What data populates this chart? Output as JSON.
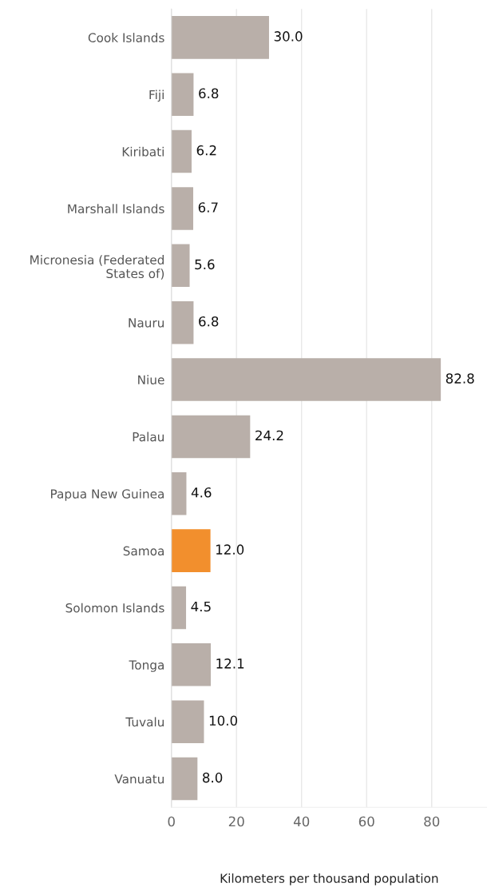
{
  "chart_data": {
    "type": "bar",
    "orientation": "horizontal",
    "xlabel": "Kilometers per thousand population",
    "categories": [
      "Cook Islands",
      "Fiji",
      "Kiribati",
      "Marshall Islands",
      "Micronesia (Federated\nStates of)",
      "Nauru",
      "Niue",
      "Palau",
      "Papua New Guinea",
      "Samoa",
      "Solomon Islands",
      "Tonga",
      "Tuvalu",
      "Vanuatu"
    ],
    "values": [
      30.0,
      6.8,
      6.2,
      6.7,
      5.6,
      6.8,
      82.8,
      24.2,
      4.6,
      12.0,
      4.5,
      12.1,
      10.0,
      8.0
    ],
    "value_labels": [
      "30.0",
      "6.8",
      "6.2",
      "6.7",
      "5.6",
      "6.8",
      "82.8",
      "24.2",
      "4.6",
      "12.0",
      "4.5",
      "12.1",
      "10.0",
      "8.0"
    ],
    "colors": [
      "#b9afa9",
      "#b9afa9",
      "#b9afa9",
      "#b9afa9",
      "#b9afa9",
      "#b9afa9",
      "#b9afa9",
      "#b9afa9",
      "#b9afa9",
      "#f28f2d",
      "#b9afa9",
      "#b9afa9",
      "#b9afa9",
      "#b9afa9"
    ],
    "xlim": [
      0,
      97
    ],
    "xticks": [
      0,
      20,
      40,
      60,
      80
    ],
    "grid": "x"
  }
}
